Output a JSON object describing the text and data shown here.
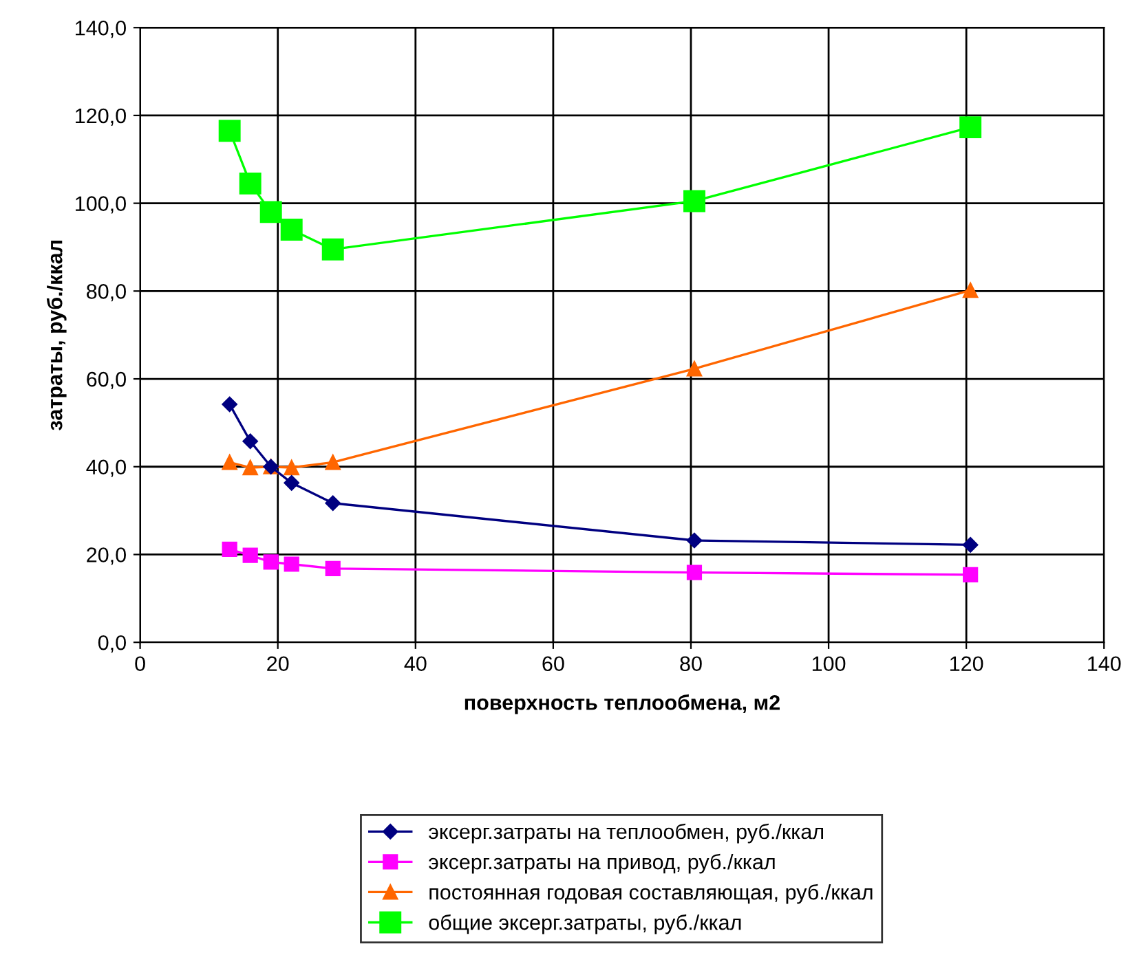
{
  "chart_data": {
    "type": "line",
    "xlabel": "поверхность теплообмена, м2",
    "ylabel": "затраты, руб./ккал",
    "x": [
      13,
      16,
      19,
      22,
      28,
      80.5,
      120.6
    ],
    "series": [
      {
        "name": "эксерг.затраты на теплообмен, руб./ккал",
        "color": "#000080",
        "marker": "diamond",
        "values": [
          54.2,
          45.8,
          40,
          36.3,
          31.7,
          23.2,
          22.2
        ]
      },
      {
        "name": "эксерг.затраты на привод, руб./ккал",
        "color": "#ff00ff",
        "marker": "square",
        "values": [
          21.2,
          19.8,
          18.3,
          17.8,
          16.8,
          15.9,
          15.4
        ]
      },
      {
        "name": "постоянная годовая составляющая, руб./ккал",
        "color": "#ff6600",
        "marker": "triangle",
        "values": [
          41,
          39.8,
          40,
          39.8,
          41,
          62.3,
          80.2
        ]
      },
      {
        "name": "общие эксерг.затраты, руб./ккал",
        "color": "#00ff00",
        "marker": "square",
        "values": [
          116.5,
          104.5,
          98,
          94,
          89.5,
          100.5,
          117.3
        ]
      }
    ],
    "xlim": [
      0,
      140
    ],
    "xticks": [
      0,
      20,
      40,
      60,
      80,
      100,
      120,
      140
    ],
    "ylim": [
      0,
      140
    ],
    "yticks": [
      {
        "value": 0,
        "label": "0,0"
      },
      {
        "value": 20,
        "label": "20,0"
      },
      {
        "value": 40,
        "label": "40,0"
      },
      {
        "value": 60,
        "label": "60,0"
      },
      {
        "value": 80,
        "label": "80,0"
      },
      {
        "value": 100,
        "label": "100,0"
      },
      {
        "value": 120,
        "label": "120,0"
      },
      {
        "value": 140,
        "label": "140,0"
      }
    ],
    "grid": true,
    "legend": "bottom",
    "line_style": "solid"
  }
}
